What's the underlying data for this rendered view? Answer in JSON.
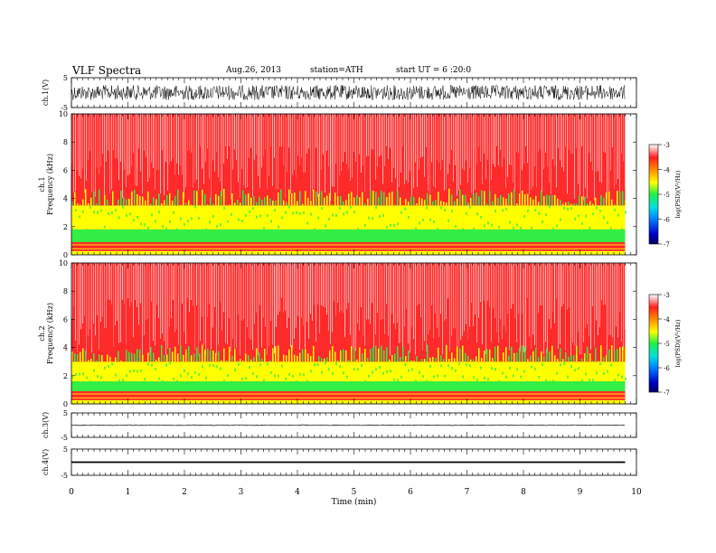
{
  "header": {
    "title": "VLF  Spectra",
    "date": "Aug.26, 2013",
    "station": "station=ATH",
    "start": "start  UT  =   6 :20:0"
  },
  "colors": {
    "spectrogram_high": "#ff2a2a",
    "spectrogram_mid": "#ffff00",
    "spectrogram_low": "#33ee44",
    "trace": "#000000"
  },
  "chart_data": [
    {
      "type": "line",
      "name": "ch1-waveform",
      "ylabel": "ch.1(V)",
      "ylim": [
        -5,
        5
      ],
      "yticks": [
        "5",
        "-5"
      ],
      "xlim": [
        0,
        10
      ],
      "trace": "dense noise filling about -2.5 to 2.5 V over 0 to 9.8 min",
      "amplitude": 2.5
    },
    {
      "type": "heatmap",
      "name": "ch1-spectrogram",
      "ylabel": "ch.1\nFrequency  (kHz)",
      "ylim": [
        0,
        10
      ],
      "yticks": [
        "0",
        "2",
        "4",
        "6",
        "8",
        "10"
      ],
      "xlim": [
        0,
        9.8
      ],
      "colorbar": {
        "label": "log(PSD)(V²/Hz)",
        "ticks": [
          "-3",
          "-4",
          "-5",
          "-6",
          "-7"
        ],
        "range": [
          -7,
          -3
        ]
      },
      "bands": [
        {
          "from_khz": 0.0,
          "to_khz": 0.3,
          "color": "#ffff00"
        },
        {
          "from_khz": 0.3,
          "to_khz": 0.9,
          "color": "#ff2a2a"
        },
        {
          "from_khz": 0.9,
          "to_khz": 1.8,
          "color": "#33ee44"
        },
        {
          "from_khz": 1.8,
          "to_khz": 3.5,
          "color": "#ffff00"
        },
        {
          "from_khz": 3.5,
          "to_khz": 10.0,
          "color": "#ff2a2a"
        }
      ]
    },
    {
      "type": "heatmap",
      "name": "ch2-spectrogram",
      "ylabel": "ch.2\nFrequency  (kHz)",
      "ylim": [
        0,
        10
      ],
      "yticks": [
        "0",
        "2",
        "4",
        "6",
        "8",
        "10"
      ],
      "xlim": [
        0,
        9.8
      ],
      "colorbar": {
        "label": "log(PSD)(V²/Hz)",
        "ticks": [
          "-3",
          "-4",
          "-5",
          "-6",
          "-7"
        ],
        "range": [
          -7,
          -3
        ]
      },
      "bands": [
        {
          "from_khz": 0.0,
          "to_khz": 0.3,
          "color": "#ffff00"
        },
        {
          "from_khz": 0.3,
          "to_khz": 0.9,
          "color": "#ff2a2a"
        },
        {
          "from_khz": 0.9,
          "to_khz": 1.6,
          "color": "#33ee44"
        },
        {
          "from_khz": 1.6,
          "to_khz": 3.0,
          "color": "#ffff00"
        },
        {
          "from_khz": 3.0,
          "to_khz": 10.0,
          "color": "#ff2a2a"
        }
      ]
    },
    {
      "type": "line",
      "name": "ch3-waveform",
      "ylabel": "ch.3(V)",
      "ylim": [
        -5,
        5
      ],
      "yticks": [
        "5",
        "-5"
      ],
      "xlim": [
        0,
        10
      ],
      "trace": "flat near 0 V over 0 to 9.8 min",
      "amplitude": 0.15
    },
    {
      "type": "line",
      "name": "ch4-waveform",
      "ylabel": "ch.4(V)",
      "ylim": [
        -5,
        5
      ],
      "yticks": [
        "5",
        "-5"
      ],
      "xlim": [
        0,
        10
      ],
      "trace": "thick flat band near 0 V over 0 to 9.8 min",
      "amplitude": 0.3
    }
  ],
  "xaxis": {
    "label": "Time  (min)",
    "ticks": [
      "0",
      "1",
      "2",
      "3",
      "4",
      "5",
      "6",
      "7",
      "8",
      "9",
      "10"
    ],
    "range": [
      0,
      10
    ]
  }
}
